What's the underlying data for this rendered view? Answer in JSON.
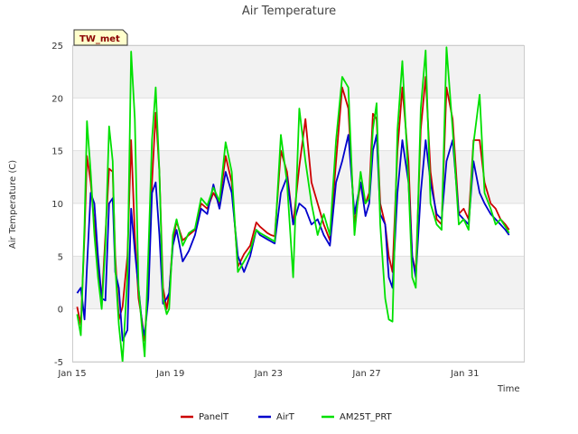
{
  "chart_data": {
    "type": "line",
    "title": "Air Temperature",
    "xlabel": "Time",
    "ylabel": "Air Temperature (C)",
    "station_tag": "TW_met",
    "x_unit": "days since Jan 15",
    "xlim": [
      0,
      18.4
    ],
    "ylim": [
      -5,
      25
    ],
    "yticks": [
      -5,
      0,
      5,
      10,
      15,
      20,
      25
    ],
    "xticks": [
      {
        "value": 0,
        "label": "Jan 15"
      },
      {
        "value": 4,
        "label": "Jan 19"
      },
      {
        "value": 8,
        "label": "Jan 23"
      },
      {
        "value": 12,
        "label": "Jan 27"
      },
      {
        "value": 16,
        "label": "Jan 31"
      }
    ],
    "series": [
      {
        "name": "PanelT",
        "color": "#cc0000",
        "x": [
          0.2,
          0.35,
          0.5,
          0.6,
          0.75,
          0.9,
          1.05,
          1.2,
          1.35,
          1.5,
          1.65,
          1.75,
          1.9,
          2.05,
          2.25,
          2.4,
          2.55,
          2.7,
          2.85,
          2.95,
          3.1,
          3.25,
          3.4,
          3.55,
          3.7,
          3.85,
          3.95,
          4.1,
          4.25,
          4.5,
          4.75,
          5.0,
          5.25,
          5.5,
          5.75,
          6.0,
          6.25,
          6.5,
          6.75,
          7.0,
          7.25,
          7.5,
          7.65,
          7.8,
          7.95,
          8.1,
          8.25,
          8.5,
          8.75,
          9.0,
          9.25,
          9.5,
          9.75,
          10.0,
          10.25,
          10.5,
          10.75,
          11.0,
          11.25,
          11.5,
          11.75,
          11.95,
          12.1,
          12.25,
          12.4,
          12.55,
          12.75,
          12.9,
          13.05,
          13.25,
          13.45,
          13.7,
          13.85,
          14.0,
          14.2,
          14.4,
          14.6,
          14.85,
          15.05,
          15.25,
          15.5,
          15.75,
          15.95,
          16.15,
          16.35,
          16.6,
          16.8,
          17.05,
          17.25,
          17.45,
          17.65,
          17.8
        ],
        "y": [
          0.2,
          -1.5,
          7,
          14.5,
          12,
          8,
          4,
          0.5,
          7,
          13.3,
          13,
          5,
          -1,
          0.2,
          5,
          16,
          7,
          1,
          -1.2,
          -3,
          3,
          12,
          18.6,
          13,
          2,
          0,
          1.5,
          6.5,
          8.3,
          6.5,
          7,
          7.5,
          10,
          9.5,
          11,
          10,
          14.5,
          12,
          4,
          5.2,
          6,
          8.2,
          7.8,
          7.5,
          7.2,
          7,
          6.9,
          15,
          13,
          8,
          13.5,
          18,
          12,
          10,
          8,
          6.5,
          14,
          21,
          19,
          8,
          12,
          10,
          11,
          18.5,
          18,
          10,
          8,
          5,
          3.5,
          15,
          21,
          14,
          5,
          3.5,
          17,
          22,
          13,
          8.5,
          8,
          21,
          18,
          9,
          9.5,
          8.5,
          16,
          16,
          12,
          10,
          9.5,
          8.5,
          8,
          7.5
        ]
      },
      {
        "name": "AirT",
        "color": "#0000cc",
        "x": [
          0.2,
          0.35,
          0.5,
          0.6,
          0.75,
          0.9,
          1.05,
          1.2,
          1.35,
          1.5,
          1.65,
          1.75,
          1.9,
          2.05,
          2.25,
          2.4,
          2.55,
          2.7,
          2.85,
          2.95,
          3.1,
          3.25,
          3.4,
          3.55,
          3.7,
          3.85,
          3.95,
          4.1,
          4.25,
          4.5,
          4.75,
          5.0,
          5.25,
          5.5,
          5.75,
          6.0,
          6.25,
          6.5,
          6.75,
          7.0,
          7.25,
          7.5,
          7.65,
          7.8,
          7.95,
          8.1,
          8.25,
          8.5,
          8.75,
          9.0,
          9.25,
          9.5,
          9.75,
          10.0,
          10.25,
          10.5,
          10.75,
          11.0,
          11.25,
          11.5,
          11.75,
          11.95,
          12.1,
          12.25,
          12.4,
          12.55,
          12.75,
          12.9,
          13.05,
          13.25,
          13.45,
          13.7,
          13.85,
          14.0,
          14.2,
          14.4,
          14.6,
          14.85,
          15.05,
          15.25,
          15.5,
          15.75,
          15.95,
          16.15,
          16.35,
          16.6,
          16.8,
          17.05,
          17.25,
          17.45,
          17.65,
          17.8
        ],
        "y": [
          1.5,
          2,
          -1,
          4,
          11,
          10,
          5,
          1,
          0.8,
          10,
          10.5,
          3.5,
          2,
          -3,
          -2,
          9.5,
          5.5,
          2,
          -1.5,
          -2.5,
          1,
          11,
          12,
          7,
          0.5,
          1,
          1.5,
          6,
          7.5,
          4.5,
          5.5,
          7,
          9.5,
          9,
          11.8,
          9.5,
          13,
          11,
          5,
          3.5,
          5,
          7.5,
          7,
          6.8,
          6.6,
          6.4,
          6.2,
          11,
          12.5,
          8,
          10,
          9.5,
          8,
          8.5,
          7,
          6,
          12,
          14,
          16.5,
          9,
          12,
          8.8,
          10,
          15,
          16.5,
          9,
          8,
          3,
          2,
          11,
          16,
          12,
          5,
          3,
          11,
          16,
          12,
          9,
          8.5,
          14,
          16,
          9,
          8.5,
          8,
          14,
          11,
          10,
          9,
          8.5,
          8,
          7.5,
          7
        ]
      },
      {
        "name": "AM25T_PRT",
        "color": "#00e000",
        "x": [
          0.2,
          0.35,
          0.5,
          0.6,
          0.75,
          0.9,
          1.05,
          1.2,
          1.35,
          1.5,
          1.65,
          1.75,
          1.9,
          2.05,
          2.25,
          2.4,
          2.55,
          2.7,
          2.85,
          2.95,
          3.1,
          3.25,
          3.4,
          3.55,
          3.7,
          3.85,
          3.95,
          4.1,
          4.25,
          4.5,
          4.75,
          5.0,
          5.25,
          5.5,
          5.75,
          6.0,
          6.25,
          6.5,
          6.75,
          7.0,
          7.25,
          7.5,
          7.65,
          7.8,
          7.95,
          8.1,
          8.25,
          8.5,
          8.75,
          9.0,
          9.25,
          9.5,
          9.75,
          10.0,
          10.25,
          10.5,
          10.75,
          11.0,
          11.25,
          11.5,
          11.75,
          11.95,
          12.1,
          12.25,
          12.4,
          12.55,
          12.75,
          12.9,
          13.05,
          13.25,
          13.45,
          13.7,
          13.85,
          14.0,
          14.2,
          14.4,
          14.6,
          14.85,
          15.05,
          15.25,
          15.5,
          15.75,
          15.95,
          16.15,
          16.35,
          16.6,
          16.8,
          17.05,
          17.25,
          17.45,
          17.65,
          17.8
        ],
        "y": [
          -0.5,
          -2.5,
          8,
          17.8,
          13,
          7,
          3,
          0,
          6,
          17.3,
          14,
          4,
          -1.5,
          -5,
          3,
          24.4,
          18,
          2,
          -2,
          -4.5,
          5,
          16,
          21,
          13,
          1,
          -0.5,
          0,
          7,
          8.5,
          6,
          7.2,
          7.6,
          10.5,
          9.8,
          11.5,
          10.2,
          15.8,
          13,
          3.5,
          4.5,
          5.5,
          7.5,
          7.2,
          7,
          6.8,
          6.6,
          6.4,
          16.5,
          12,
          3,
          19,
          14,
          10,
          7,
          9,
          7,
          16,
          22,
          21,
          7,
          13,
          10,
          10.5,
          17,
          19.5,
          8,
          1,
          -1,
          -1.2,
          17,
          23.5,
          12,
          3,
          2,
          19,
          24.5,
          10,
          8,
          7.5,
          24.8,
          17,
          8,
          8.5,
          7.5,
          15.7,
          20.3,
          11,
          9.5,
          8,
          8.5,
          7.8,
          7.2
        ]
      }
    ]
  }
}
